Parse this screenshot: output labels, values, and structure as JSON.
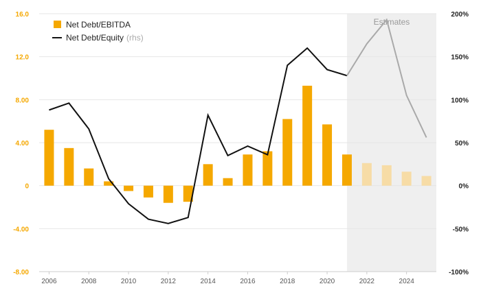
{
  "chart_data": {
    "type": "bar+line",
    "estimates_label": "Estimates",
    "estimate_start_year": 2021,
    "x_ticks": [
      "2006",
      "2008",
      "2010",
      "2012",
      "2014",
      "2016",
      "2018",
      "2020",
      "2022",
      "2024"
    ],
    "left_axis": {
      "ylim": [
        -8.0,
        16.0
      ],
      "ticks": [
        "-8.00",
        "-4.00",
        "0",
        "4.00",
        "8.00",
        "12.0",
        "16.0"
      ],
      "tick_values": [
        -8,
        -4,
        0,
        4,
        8,
        12,
        16
      ]
    },
    "right_axis": {
      "ylim": [
        -100,
        200
      ],
      "ticks": [
        "-100%",
        "-50%",
        "0%",
        "50%",
        "100%",
        "150%",
        "200%"
      ],
      "tick_values": [
        -100,
        -50,
        0,
        50,
        100,
        150,
        200
      ]
    },
    "legend": {
      "position": "top-left",
      "bar_label": "Net Debt/EBITDA",
      "line_label": "Net Debt/Equity",
      "line_suffix": "(rhs)"
    },
    "years": [
      2006,
      2007,
      2008,
      2009,
      2010,
      2011,
      2012,
      2013,
      2014,
      2015,
      2016,
      2017,
      2018,
      2019,
      2020,
      2021,
      2022,
      2023,
      2024,
      2025
    ],
    "series": [
      {
        "name": "Net Debt/EBITDA",
        "axis": "left",
        "values": [
          5.2,
          3.5,
          1.6,
          0.4,
          -0.5,
          -1.1,
          -1.6,
          -1.5,
          2.0,
          0.7,
          2.9,
          3.2,
          6.2,
          9.3,
          5.7,
          2.9,
          2.1,
          1.9,
          1.3,
          0.9
        ]
      },
      {
        "name": "Net Debt/Equity",
        "axis": "right",
        "values": [
          88,
          96,
          66,
          8,
          -21,
          -39,
          -44,
          -37,
          82,
          35,
          46,
          36,
          140,
          160,
          135,
          128,
          165,
          193,
          105,
          56
        ]
      }
    ],
    "colors": {
      "bar": "#f5a800",
      "bar_estimate": "#f7dca6",
      "line": "#111111",
      "line_estimate": "#a9a9a9",
      "estimate_shade": "#efefef",
      "grid": "#e6e6e6"
    }
  }
}
